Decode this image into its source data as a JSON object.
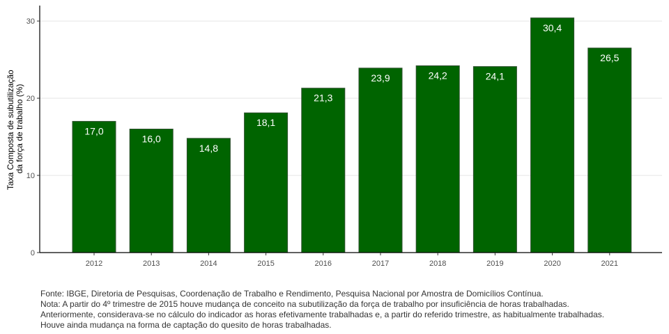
{
  "chart_data": {
    "type": "bar",
    "categories": [
      "2012",
      "2013",
      "2014",
      "2015",
      "2016",
      "2017",
      "2018",
      "2019",
      "2020",
      "2021"
    ],
    "values": [
      17.0,
      16.0,
      14.8,
      18.1,
      21.3,
      23.9,
      24.2,
      24.1,
      30.4,
      26.5
    ],
    "value_labels": [
      "17,0",
      "16,0",
      "14,8",
      "18,1",
      "21,3",
      "23,9",
      "24,2",
      "24,1",
      "30,4",
      "26,5"
    ],
    "ylabel_lines": [
      "Taxa Composta de subutilização",
      "da força de trabalho (%)"
    ],
    "yticks": [
      0,
      10,
      20,
      30
    ],
    "ylim": [
      0,
      32
    ],
    "grid": true,
    "bar_color": "#006400"
  },
  "footnote": {
    "lines": [
      "Fonte: IBGE, Diretoria de Pesquisas, Coordenação de Trabalho e Rendimento, Pesquisa Nacional por Amostra de Domicílios Contínua.",
      "Nota: A partir do 4º trimestre de 2015 houve mudança de conceito na subutilização da força de trabalho por insuficiência de horas trabalhadas.",
      "Anteriormente, considerava-se no cálculo do indicador as horas efetivamente trabalhadas e, a partir do referido trimestre, as habitualmente trabalhadas.",
      "Houve ainda mudança na forma de captação do quesito de horas trabalhadas."
    ]
  }
}
